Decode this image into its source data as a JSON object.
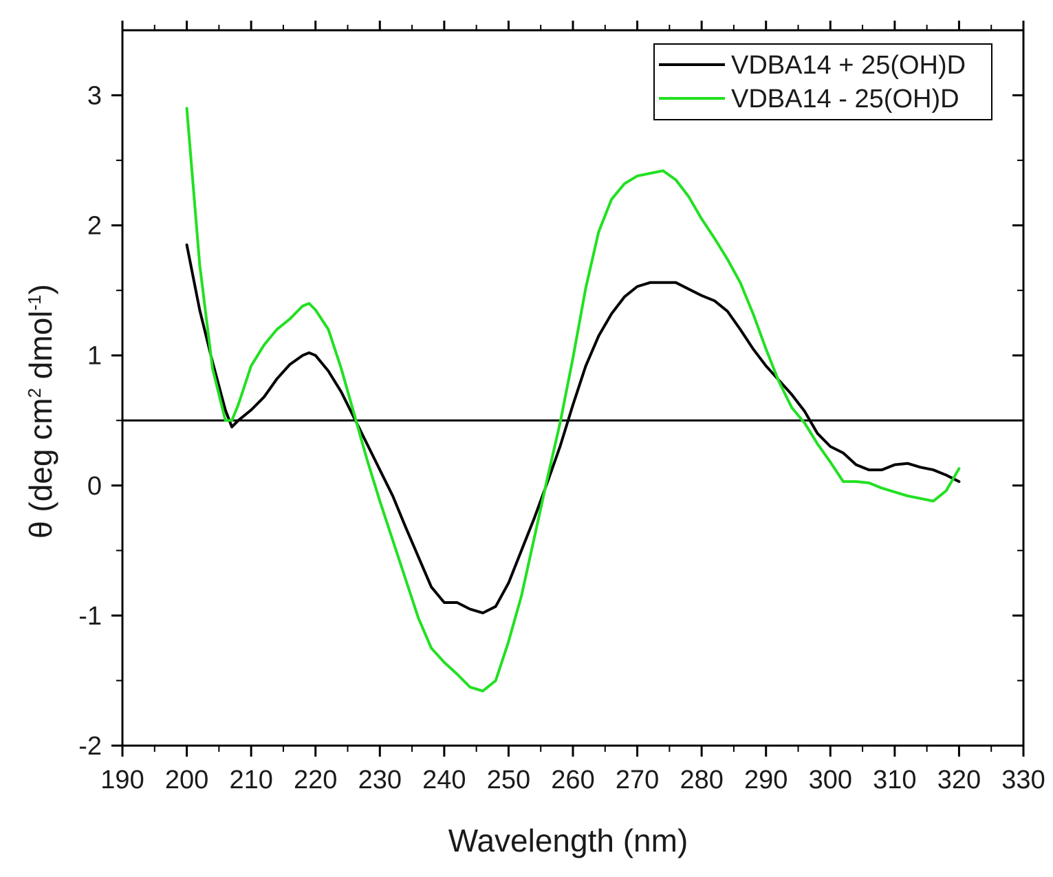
{
  "chart_data": {
    "type": "line",
    "title": "",
    "xlabel": "Wavelength (nm)",
    "ylabel": {
      "prefix": "θ (deg cm",
      "sup1": "2",
      "middle": " dmol",
      "sup2": "-1",
      "suffix": ")"
    },
    "xlim": [
      190,
      330
    ],
    "ylim": [
      -2,
      3.5
    ],
    "x_ticks": [
      190,
      200,
      210,
      220,
      230,
      240,
      250,
      260,
      270,
      280,
      290,
      300,
      310,
      320,
      330
    ],
    "x_tick_labels": [
      "190",
      "200",
      "210",
      "220",
      "230",
      "240",
      "250",
      "260",
      "270",
      "280",
      "290",
      "300",
      "310",
      "320",
      "330"
    ],
    "y_ticks": [
      -2,
      -1,
      0,
      1,
      2,
      3
    ],
    "y_tick_labels": [
      "-2",
      "-1",
      "0",
      "1",
      "2",
      "3"
    ],
    "reference_line_y": 0.5,
    "legend_position": "top-right",
    "series": [
      {
        "name": "VDBA14 + 25(OH)D",
        "color": "#000000",
        "x": [
          200,
          202,
          204,
          206,
          207,
          208,
          210,
          212,
          214,
          216,
          218,
          219,
          220,
          222,
          224,
          226,
          228,
          230,
          232,
          234,
          236,
          238,
          240,
          242,
          244,
          246,
          248,
          250,
          252,
          254,
          256,
          258,
          260,
          262,
          264,
          266,
          268,
          270,
          272,
          274,
          276,
          278,
          280,
          282,
          284,
          286,
          288,
          290,
          292,
          294,
          296,
          298,
          300,
          302,
          304,
          306,
          308,
          310,
          312,
          314,
          316,
          318,
          320
        ],
        "y": [
          1.85,
          1.35,
          0.95,
          0.58,
          0.45,
          0.5,
          0.58,
          0.68,
          0.82,
          0.93,
          1.0,
          1.02,
          1.0,
          0.88,
          0.72,
          0.52,
          0.32,
          0.12,
          -0.08,
          -0.32,
          -0.55,
          -0.78,
          -0.9,
          -0.9,
          -0.95,
          -0.98,
          -0.93,
          -0.75,
          -0.5,
          -0.25,
          0.02,
          0.3,
          0.62,
          0.92,
          1.15,
          1.32,
          1.45,
          1.53,
          1.56,
          1.56,
          1.56,
          1.51,
          1.46,
          1.42,
          1.34,
          1.2,
          1.05,
          0.92,
          0.81,
          0.7,
          0.57,
          0.4,
          0.3,
          0.25,
          0.16,
          0.12,
          0.12,
          0.16,
          0.17,
          0.14,
          0.12,
          0.08,
          0.03
        ]
      },
      {
        "name": "VDBA14 - 25(OH)D",
        "color": "#22e022",
        "x": [
          200,
          202,
          204,
          206,
          207,
          208,
          210,
          212,
          214,
          216,
          218,
          219,
          220,
          222,
          224,
          226,
          228,
          230,
          232,
          234,
          236,
          238,
          240,
          242,
          244,
          246,
          248,
          250,
          252,
          254,
          256,
          258,
          260,
          262,
          264,
          266,
          268,
          270,
          272,
          274,
          276,
          278,
          280,
          282,
          284,
          286,
          288,
          290,
          292,
          294,
          296,
          298,
          300,
          302,
          304,
          306,
          308,
          310,
          312,
          314,
          316,
          318,
          320
        ],
        "y": [
          2.9,
          1.7,
          0.9,
          0.5,
          0.5,
          0.62,
          0.92,
          1.08,
          1.2,
          1.28,
          1.38,
          1.4,
          1.35,
          1.2,
          0.9,
          0.55,
          0.2,
          -0.12,
          -0.42,
          -0.72,
          -1.02,
          -1.25,
          -1.36,
          -1.45,
          -1.55,
          -1.58,
          -1.5,
          -1.2,
          -0.85,
          -0.4,
          0.05,
          0.48,
          0.98,
          1.52,
          1.95,
          2.2,
          2.32,
          2.38,
          2.4,
          2.42,
          2.35,
          2.22,
          2.05,
          1.9,
          1.74,
          1.56,
          1.32,
          1.05,
          0.8,
          0.6,
          0.48,
          0.32,
          0.18,
          0.03,
          0.03,
          0.02,
          -0.02,
          -0.05,
          -0.08,
          -0.1,
          -0.12,
          -0.04,
          0.13
        ]
      }
    ]
  }
}
